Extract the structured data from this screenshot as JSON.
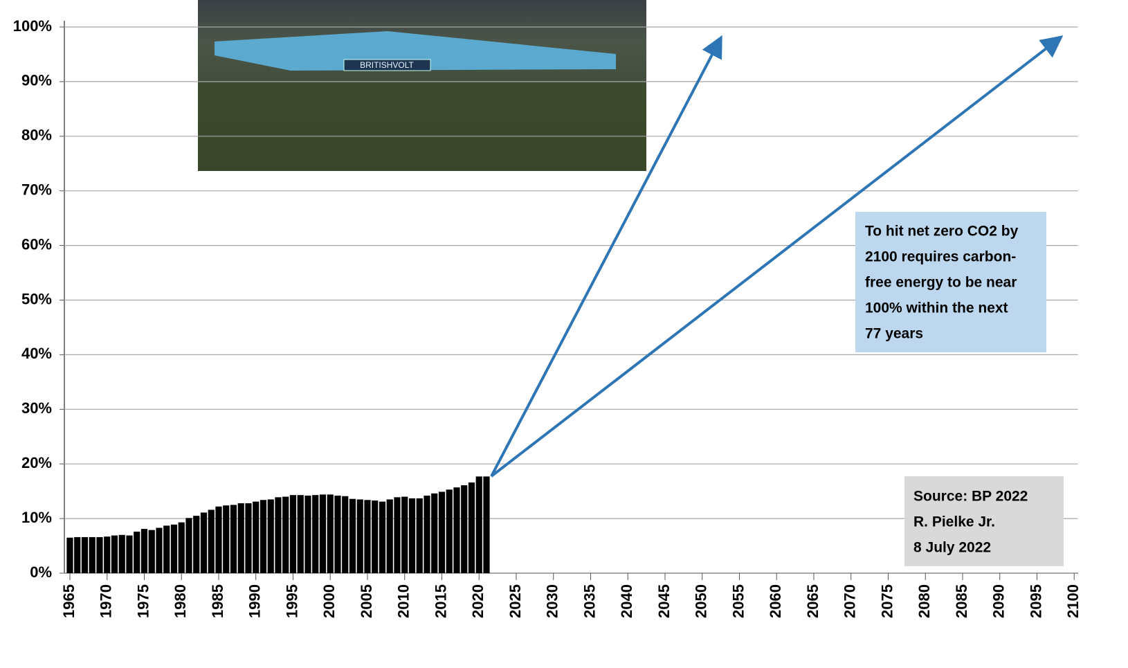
{
  "chart_data": {
    "type": "bar",
    "x": [
      1965,
      1966,
      1967,
      1968,
      1969,
      1970,
      1971,
      1972,
      1973,
      1974,
      1975,
      1976,
      1977,
      1978,
      1979,
      1980,
      1981,
      1982,
      1983,
      1984,
      1985,
      1986,
      1987,
      1988,
      1989,
      1990,
      1991,
      1992,
      1993,
      1994,
      1995,
      1996,
      1997,
      1998,
      1999,
      2000,
      2001,
      2002,
      2003,
      2004,
      2005,
      2006,
      2007,
      2008,
      2009,
      2010,
      2011,
      2012,
      2013,
      2014,
      2015,
      2016,
      2017,
      2018,
      2019,
      2020,
      2021
    ],
    "values": [
      6.5,
      6.6,
      6.6,
      6.6,
      6.6,
      6.7,
      6.9,
      7.0,
      6.9,
      7.6,
      8.1,
      7.9,
      8.3,
      8.7,
      8.9,
      9.3,
      10.1,
      10.5,
      11.1,
      11.6,
      12.2,
      12.4,
      12.5,
      12.8,
      12.8,
      13.1,
      13.4,
      13.5,
      13.9,
      14.0,
      14.3,
      14.3,
      14.2,
      14.3,
      14.4,
      14.4,
      14.2,
      14.1,
      13.6,
      13.5,
      13.4,
      13.3,
      13.1,
      13.5,
      13.9,
      14.0,
      13.7,
      13.7,
      14.2,
      14.6,
      14.9,
      15.3,
      15.7,
      16.1,
      16.6,
      17.7,
      17.7
    ],
    "color": "#000000",
    "xlim": [
      1964.5,
      2100.5
    ],
    "xticks": [
      1965,
      1970,
      1975,
      1980,
      1985,
      1990,
      1995,
      2000,
      2005,
      2010,
      2015,
      2020,
      2025,
      2030,
      2035,
      2040,
      2045,
      2050,
      2055,
      2060,
      2065,
      2070,
      2075,
      2080,
      2085,
      2090,
      2095,
      2100
    ],
    "ylim": [
      0,
      100
    ],
    "yticks": [
      {
        "value": 0,
        "label": "0%"
      },
      {
        "value": 10,
        "label": "10%"
      },
      {
        "value": 20,
        "label": "20%"
      },
      {
        "value": 30,
        "label": "30%"
      },
      {
        "value": 40,
        "label": "40%"
      },
      {
        "value": 50,
        "label": "50%"
      },
      {
        "value": 60,
        "label": "60%"
      },
      {
        "value": 70,
        "label": "70%"
      },
      {
        "value": 80,
        "label": "80%"
      },
      {
        "value": 90,
        "label": "90%"
      },
      {
        "value": 100,
        "label": "100%"
      }
    ],
    "grid": true,
    "photo_text": "BRITISHVOLT",
    "annotations": [
      {
        "lines": [
          "To hit net zero CO2 by",
          "2100 requires carbon-",
          "free energy to be near",
          "100% within the next",
          "77 years"
        ],
        "color": "#bdd7ee"
      },
      {
        "lines": [
          "Source: BP 2022",
          "R. Pielke Jr.",
          "8 July 2022"
        ],
        "color": "#d9d9d9"
      }
    ]
  }
}
